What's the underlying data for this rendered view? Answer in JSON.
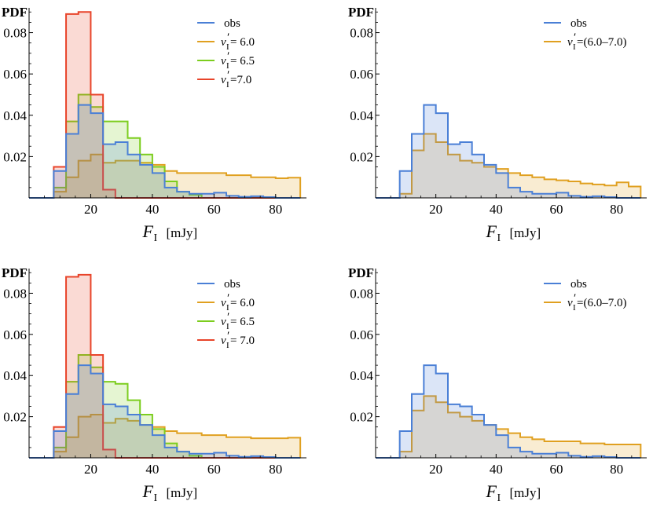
{
  "figure": {
    "colors": {
      "obs": "#4a7fd6",
      "v6_0": "#e0a020",
      "v6_5": "#7ccd1e",
      "v7_0": "#e8442a",
      "v6_0_7_0": "#e0a020"
    }
  },
  "chart_data": [
    {
      "type": "histogram",
      "panel": "top-left",
      "ylabel": "PDF",
      "xlabel": "F",
      "xlabel_sub": "I",
      "xlabel_unit": "[mJy]",
      "xlim": [
        0,
        90
      ],
      "ylim": [
        0,
        0.092
      ],
      "xticks": [
        "20",
        "40",
        "60",
        "80"
      ],
      "xtick_values": [
        20,
        40,
        60,
        80
      ],
      "yticks": [
        "0.02",
        "0.04",
        "0.06",
        "0.08"
      ],
      "ytick_values": [
        0.02,
        0.04,
        0.06,
        0.08
      ],
      "bin_edges": [
        0,
        4,
        8,
        12,
        16,
        20,
        24,
        28,
        32,
        36,
        40,
        44,
        48,
        52,
        56,
        60,
        64,
        68,
        72,
        76,
        80,
        84,
        88
      ],
      "legend_position": "top-right",
      "series": [
        {
          "key": "v6_0",
          "legend_main": "v",
          "legend_sup": "′",
          "legend_sub": "I",
          "legend_value": "= 6.0",
          "values": [
            0,
            0,
            0.003,
            0.01,
            0.018,
            0.021,
            0.017,
            0.018,
            0.018,
            0.017,
            0.016,
            0.013,
            0.012,
            0.012,
            0.012,
            0.012,
            0.011,
            0.011,
            0.01,
            0.01,
            0.0095,
            0.0098
          ]
        },
        {
          "key": "v6_5",
          "legend_main": "v",
          "legend_sup": "′",
          "legend_sub": "I",
          "legend_value": "= 6.5",
          "values": [
            0,
            0,
            0.005,
            0.037,
            0.05,
            0.044,
            0.037,
            0.037,
            0.029,
            0.021,
            0.015,
            0.008,
            0.003,
            0.0015,
            0,
            0,
            0,
            0,
            0,
            0,
            0,
            0
          ]
        },
        {
          "key": "v7_0",
          "legend_main": "v",
          "legend_sup": "′",
          "legend_sub": "I",
          "legend_value": "=7.0",
          "values": [
            0,
            0,
            0.015,
            0.089,
            0.09,
            0.05,
            0.004,
            0,
            0,
            0,
            0,
            0,
            0,
            0,
            0,
            0,
            0,
            0,
            0,
            0,
            0,
            0
          ]
        },
        {
          "key": "obs",
          "legend_main": "obs",
          "legend_sup": "",
          "legend_sub": "",
          "legend_value": "",
          "values": [
            0,
            0,
            0.013,
            0.031,
            0.045,
            0.041,
            0.026,
            0.027,
            0.021,
            0.016,
            0.012,
            0.005,
            0.003,
            0.002,
            0.002,
            0.0025,
            0.001,
            0.0005,
            0.0008,
            0.0004,
            0,
            0
          ]
        }
      ],
      "legend_order": [
        "obs",
        "v6_0",
        "v6_5",
        "v7_0"
      ]
    },
    {
      "type": "histogram",
      "panel": "top-right",
      "ylabel": "PDF",
      "xlabel": "F",
      "xlabel_sub": "I",
      "xlabel_unit": "[mJy]",
      "xlim": [
        0,
        90
      ],
      "ylim": [
        0,
        0.092
      ],
      "xticks": [
        "20",
        "40",
        "60",
        "80"
      ],
      "xtick_values": [
        20,
        40,
        60,
        80
      ],
      "yticks": [
        "0.02",
        "0.04",
        "0.06",
        "0.08"
      ],
      "ytick_values": [
        0.02,
        0.04,
        0.06,
        0.08
      ],
      "bin_edges": [
        0,
        4,
        8,
        12,
        16,
        20,
        24,
        28,
        32,
        36,
        40,
        44,
        48,
        52,
        56,
        60,
        64,
        68,
        72,
        76,
        80,
        84,
        88
      ],
      "legend_position": "top-right",
      "series": [
        {
          "key": "v6_0_7_0",
          "legend_main": "v",
          "legend_sup": "′",
          "legend_sub": "I",
          "legend_value": "=(6.0–7.0)",
          "values": [
            0,
            0,
            0.002,
            0.023,
            0.031,
            0.027,
            0.021,
            0.018,
            0.017,
            0.015,
            0.014,
            0.012,
            0.011,
            0.01,
            0.009,
            0.0085,
            0.008,
            0.007,
            0.0065,
            0.006,
            0.0075,
            0.0055
          ]
        },
        {
          "key": "obs",
          "legend_main": "obs",
          "legend_sup": "",
          "legend_sub": "",
          "legend_value": "",
          "values": [
            0,
            0,
            0.013,
            0.031,
            0.045,
            0.041,
            0.026,
            0.027,
            0.021,
            0.016,
            0.012,
            0.005,
            0.003,
            0.002,
            0.002,
            0.0025,
            0.001,
            0.0005,
            0.0008,
            0.0004,
            0,
            0
          ]
        }
      ],
      "legend_order": [
        "obs",
        "v6_0_7_0"
      ]
    },
    {
      "type": "histogram",
      "panel": "bottom-left",
      "ylabel": "PDF",
      "xlabel": "F",
      "xlabel_sub": "I",
      "xlabel_unit": "[mJy]",
      "xlim": [
        0,
        90
      ],
      "ylim": [
        0,
        0.092
      ],
      "xticks": [
        "20",
        "40",
        "60",
        "80"
      ],
      "xtick_values": [
        20,
        40,
        60,
        80
      ],
      "yticks": [
        "0.02",
        "0.04",
        "0.06",
        "0.08"
      ],
      "ytick_values": [
        0.02,
        0.04,
        0.06,
        0.08
      ],
      "bin_edges": [
        0,
        4,
        8,
        12,
        16,
        20,
        24,
        28,
        32,
        36,
        40,
        44,
        48,
        52,
        56,
        60,
        64,
        68,
        72,
        76,
        80,
        84,
        88
      ],
      "legend_position": "top-right",
      "series": [
        {
          "key": "v6_0",
          "legend_main": "v",
          "legend_sup": "′",
          "legend_sub": "I",
          "legend_value": "= 6.0",
          "values": [
            0,
            0,
            0.003,
            0.01,
            0.02,
            0.021,
            0.017,
            0.019,
            0.018,
            0.016,
            0.015,
            0.013,
            0.012,
            0.012,
            0.011,
            0.011,
            0.01,
            0.01,
            0.0095,
            0.0095,
            0.0095,
            0.0098
          ]
        },
        {
          "key": "v6_5",
          "legend_main": "v",
          "legend_sup": "′",
          "legend_sub": "I",
          "legend_value": "= 6.5",
          "values": [
            0,
            0,
            0.005,
            0.037,
            0.05,
            0.044,
            0.037,
            0.036,
            0.028,
            0.021,
            0.014,
            0.007,
            0.003,
            0.001,
            0,
            0,
            0,
            0,
            0,
            0,
            0,
            0
          ]
        },
        {
          "key": "v7_0",
          "legend_main": "v",
          "legend_sup": "′",
          "legend_sub": "I",
          "legend_value": "= 7.0",
          "values": [
            0,
            0,
            0.015,
            0.088,
            0.089,
            0.05,
            0.004,
            0,
            0,
            0,
            0,
            0,
            0,
            0,
            0,
            0,
            0,
            0,
            0,
            0,
            0,
            0
          ]
        },
        {
          "key": "obs",
          "legend_main": "obs",
          "legend_sup": "",
          "legend_sub": "",
          "legend_value": "",
          "values": [
            0,
            0,
            0.013,
            0.031,
            0.045,
            0.041,
            0.026,
            0.025,
            0.021,
            0.016,
            0.011,
            0.005,
            0.003,
            0.002,
            0.002,
            0.0025,
            0.001,
            0.0005,
            0.0008,
            0.0004,
            0,
            0
          ]
        }
      ],
      "legend_order": [
        "obs",
        "v6_0",
        "v6_5",
        "v7_0"
      ]
    },
    {
      "type": "histogram",
      "panel": "bottom-right",
      "ylabel": "PDF",
      "xlabel": "F",
      "xlabel_sub": "I",
      "xlabel_unit": "[mJy]",
      "xlim": [
        0,
        90
      ],
      "ylim": [
        0,
        0.092
      ],
      "xticks": [
        "20",
        "40",
        "60",
        "80"
      ],
      "xtick_values": [
        20,
        40,
        60,
        80
      ],
      "yticks": [
        "0.02",
        "0.04",
        "0.06",
        "0.08"
      ],
      "ytick_values": [
        0.02,
        0.04,
        0.06,
        0.08
      ],
      "bin_edges": [
        0,
        4,
        8,
        12,
        16,
        20,
        24,
        28,
        32,
        36,
        40,
        44,
        48,
        52,
        56,
        60,
        64,
        68,
        72,
        76,
        80,
        84,
        88
      ],
      "legend_position": "top-right",
      "series": [
        {
          "key": "v6_0_7_0",
          "legend_main": "v",
          "legend_sup": "′",
          "legend_sub": "I",
          "legend_value": "=(6.0–7.0)",
          "values": [
            0,
            0,
            0.003,
            0.023,
            0.03,
            0.027,
            0.022,
            0.02,
            0.018,
            0.016,
            0.014,
            0.012,
            0.01,
            0.009,
            0.008,
            0.008,
            0.008,
            0.007,
            0.007,
            0.0065,
            0.0065,
            0.0065
          ]
        },
        {
          "key": "obs",
          "legend_main": "obs",
          "legend_sup": "",
          "legend_sub": "",
          "legend_value": "",
          "values": [
            0,
            0,
            0.013,
            0.031,
            0.045,
            0.041,
            0.026,
            0.025,
            0.021,
            0.016,
            0.011,
            0.005,
            0.003,
            0.002,
            0.002,
            0.0025,
            0.001,
            0.0005,
            0.0008,
            0.0004,
            0,
            0
          ]
        }
      ],
      "legend_order": [
        "obs",
        "v6_0_7_0"
      ]
    }
  ]
}
